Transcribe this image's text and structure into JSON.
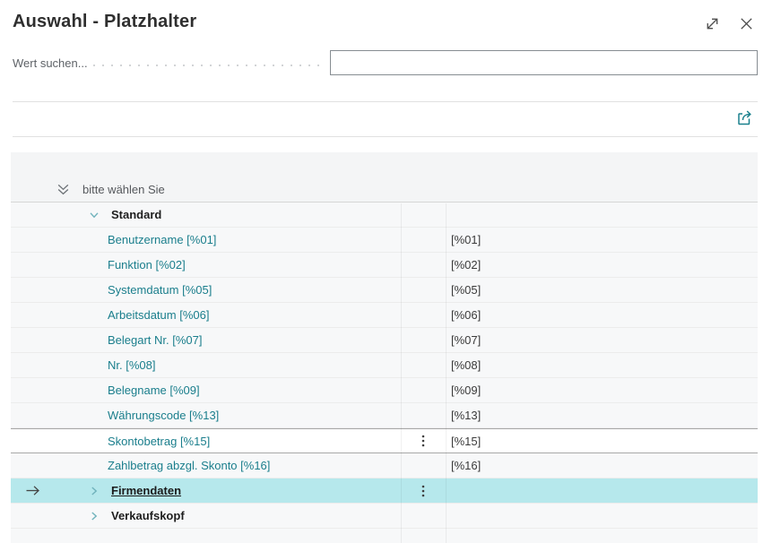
{
  "window": {
    "title": "Auswahl - Platzhalter",
    "expand_icon": "expand-diagonal-icon",
    "close_icon": "close-icon"
  },
  "search": {
    "label": "Wert suchen...",
    "value": "",
    "placeholder": ""
  },
  "toolbar": {
    "share_icon": "share-icon"
  },
  "grid": {
    "header": {
      "collapse_icon": "double-chevron-down-icon",
      "label": "bitte wählen Sie"
    },
    "rows": [
      {
        "kind": "group",
        "label": "Standard",
        "expanded": true,
        "selected": false,
        "active": false,
        "menu": false,
        "value": ""
      },
      {
        "kind": "item",
        "label": "Benutzername [%01]",
        "value": "[%01]",
        "selected": false,
        "active": false,
        "menu": false
      },
      {
        "kind": "item",
        "label": "Funktion [%02]",
        "value": "[%02]",
        "selected": false,
        "active": false,
        "menu": false
      },
      {
        "kind": "item",
        "label": "Systemdatum [%05]",
        "value": "[%05]",
        "selected": false,
        "active": false,
        "menu": false
      },
      {
        "kind": "item",
        "label": "Arbeitsdatum [%06]",
        "value": "[%06]",
        "selected": false,
        "active": false,
        "menu": false
      },
      {
        "kind": "item",
        "label": "Belegart Nr. [%07]",
        "value": "[%07]",
        "selected": false,
        "active": false,
        "menu": false
      },
      {
        "kind": "item",
        "label": "Nr. [%08]",
        "value": "[%08]",
        "selected": false,
        "active": false,
        "menu": false
      },
      {
        "kind": "item",
        "label": "Belegname [%09]",
        "value": "[%09]",
        "selected": false,
        "active": false,
        "menu": false
      },
      {
        "kind": "item",
        "label": "Währungscode [%13]",
        "value": "[%13]",
        "selected": false,
        "active": false,
        "menu": false
      },
      {
        "kind": "item",
        "label": "Skontobetrag [%15]",
        "value": "[%15]",
        "selected": false,
        "active": true,
        "menu": true
      },
      {
        "kind": "item",
        "label": "Zahlbetrag abzgl. Skonto [%16]",
        "value": "[%16]",
        "selected": false,
        "active": false,
        "menu": false
      },
      {
        "kind": "group",
        "label": "Firmendaten",
        "expanded": false,
        "selected": true,
        "active": false,
        "menu": true,
        "value": ""
      },
      {
        "kind": "group",
        "label": "Verkaufskopf",
        "expanded": false,
        "selected": false,
        "active": false,
        "menu": false,
        "value": ""
      }
    ]
  },
  "colors": {
    "accent": "#1a7e8c",
    "selection_bg": "#b6e8ec",
    "active_row_border": "#a8a8a8",
    "chevron_teal": "#6fb2bb"
  }
}
